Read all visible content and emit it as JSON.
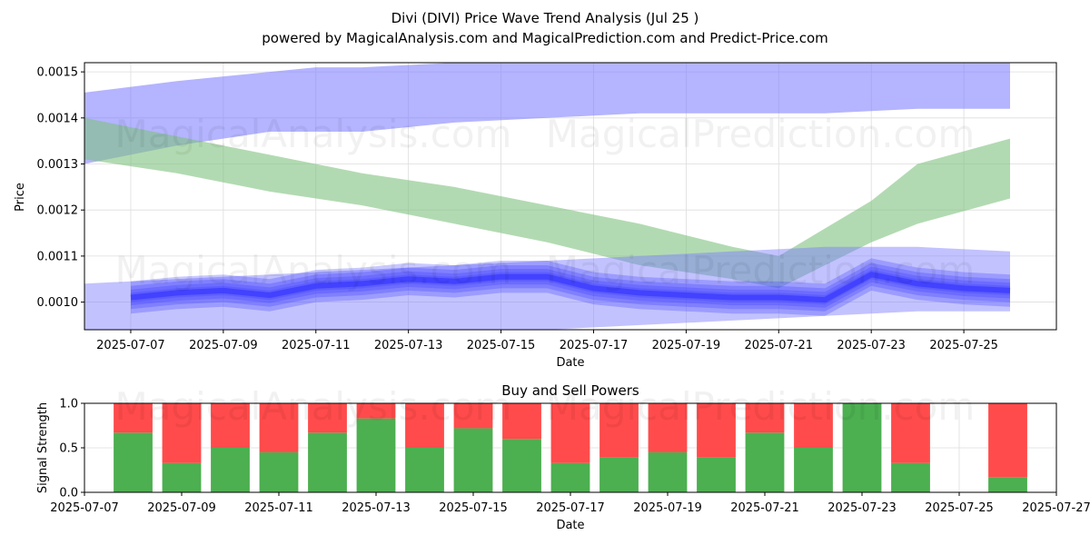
{
  "title": "Divi (DIVI) Price Wave Trend Analysis (Jul 25 )",
  "subtitle": "powered by MagicalAnalysis.com and MagicalPrediction.com and Predict-Price.com",
  "watermark_left": "MagicalAnalysis.com",
  "watermark_right": "MagicalPrediction.com",
  "colors": {
    "upper_band": "#7777ff",
    "green_band": "#7fc27f",
    "price": "#3a3aff",
    "buy": "#4caf50",
    "sell": "#ff4b4b"
  },
  "chart_data": [
    {
      "type": "area",
      "xlabel": "Date",
      "ylabel": "Price",
      "xlim": [
        "2025-07-06",
        "2025-07-27"
      ],
      "ylim": [
        0.00094,
        0.00152
      ],
      "grid": true,
      "xticks": [
        "2025-07-07",
        "2025-07-09",
        "2025-07-11",
        "2025-07-13",
        "2025-07-15",
        "2025-07-17",
        "2025-07-19",
        "2025-07-21",
        "2025-07-23",
        "2025-07-25"
      ],
      "yticks": [
        "0.0010",
        "0.0011",
        "0.0012",
        "0.0013",
        "0.0014",
        "0.0015"
      ],
      "bands": [
        {
          "x": [
            "2025-07-06",
            "2025-07-08",
            "2025-07-10",
            "2025-07-11",
            "2025-07-12",
            "2025-07-14",
            "2025-07-16",
            "2025-07-18",
            "2025-07-20",
            "2025-07-22",
            "2025-07-24",
            "2025-07-26"
          ],
          "upper": [
            0.001455,
            0.00148,
            0.0015,
            0.00151,
            0.00151,
            0.00152,
            0.00152,
            0.00152,
            0.00152,
            0.00152,
            0.00152,
            0.00152
          ],
          "lower": [
            0.0013,
            0.00134,
            0.00137,
            0.00137,
            0.00137,
            0.00139,
            0.0014,
            0.00141,
            0.00141,
            0.00141,
            0.00142,
            0.00142
          ]
        },
        {
          "x": [
            "2025-07-06",
            "2025-07-08",
            "2025-07-10",
            "2025-07-12",
            "2025-07-14",
            "2025-07-16",
            "2025-07-18",
            "2025-07-20",
            "2025-07-21",
            "2025-07-22",
            "2025-07-23",
            "2025-07-24",
            "2025-07-26"
          ],
          "upper": [
            0.0014,
            0.00136,
            0.00132,
            0.00128,
            0.00125,
            0.00121,
            0.00117,
            0.00112,
            0.0011,
            0.00116,
            0.00122,
            0.0013,
            0.001355
          ],
          "lower": [
            0.00131,
            0.00128,
            0.00124,
            0.00121,
            0.00117,
            0.00113,
            0.00108,
            0.00105,
            0.00103,
            0.00108,
            0.00113,
            0.00117,
            0.001225
          ]
        },
        {
          "x": [
            "2025-07-06",
            "2025-07-08",
            "2025-07-10",
            "2025-07-12",
            "2025-07-14",
            "2025-07-16",
            "2025-07-18",
            "2025-07-20",
            "2025-07-22",
            "2025-07-24",
            "2025-07-26"
          ],
          "upper": [
            0.00104,
            0.00105,
            0.00106,
            0.00107,
            0.00108,
            0.00109,
            0.0011,
            0.00111,
            0.00112,
            0.00112,
            0.00111
          ],
          "lower": [
            0.00093,
            0.00093,
            0.00093,
            0.00093,
            0.00093,
            0.00094,
            0.00095,
            0.00096,
            0.00097,
            0.00098,
            0.00098
          ]
        }
      ],
      "series": [
        {
          "x": [
            "2025-07-07",
            "2025-07-08",
            "2025-07-09",
            "2025-07-10",
            "2025-07-11",
            "2025-07-12",
            "2025-07-13",
            "2025-07-14",
            "2025-07-15",
            "2025-07-16",
            "2025-07-17",
            "2025-07-18",
            "2025-07-19",
            "2025-07-20",
            "2025-07-21",
            "2025-07-22",
            "2025-07-23",
            "2025-07-24",
            "2025-07-25",
            "2025-07-26"
          ],
          "values": [
            0.00101,
            0.00102,
            0.001025,
            0.001015,
            0.001035,
            0.00104,
            0.00105,
            0.001045,
            0.001055,
            0.001055,
            0.00103,
            0.00102,
            0.001015,
            0.00101,
            0.00101,
            0.001005,
            0.00106,
            0.00104,
            0.00103,
            0.001025
          ]
        }
      ]
    },
    {
      "type": "bar",
      "title": "Buy and Sell Powers",
      "xlabel": "Date",
      "ylabel": "Signal Strength",
      "xlim": [
        "2025-07-07",
        "2025-07-27"
      ],
      "ylim": [
        0,
        1.0
      ],
      "grid": true,
      "xticks": [
        "2025-07-07",
        "2025-07-09",
        "2025-07-11",
        "2025-07-13",
        "2025-07-15",
        "2025-07-17",
        "2025-07-19",
        "2025-07-21",
        "2025-07-23",
        "2025-07-25",
        "2025-07-27"
      ],
      "yticks": [
        "0.0",
        "0.5",
        "1.0"
      ],
      "categories": [
        "2025-07-08",
        "2025-07-09",
        "2025-07-10",
        "2025-07-11",
        "2025-07-12",
        "2025-07-13",
        "2025-07-14",
        "2025-07-15",
        "2025-07-16",
        "2025-07-17",
        "2025-07-18",
        "2025-07-19",
        "2025-07-20",
        "2025-07-21",
        "2025-07-22",
        "2025-07-23",
        "2025-07-24",
        "2025-07-26"
      ],
      "series": [
        {
          "values": [
            0.67,
            0.33,
            0.5,
            0.45,
            0.67,
            0.83,
            0.5,
            0.72,
            0.6,
            0.33,
            0.39,
            0.45,
            0.39,
            0.67,
            0.5,
            1.0,
            0.33,
            0.17
          ]
        },
        {
          "values": [
            0.33,
            0.67,
            0.5,
            0.55,
            0.33,
            0.17,
            0.5,
            0.28,
            0.4,
            0.67,
            0.61,
            0.55,
            0.61,
            0.33,
            0.5,
            0.0,
            0.67,
            0.83
          ]
        }
      ]
    }
  ]
}
